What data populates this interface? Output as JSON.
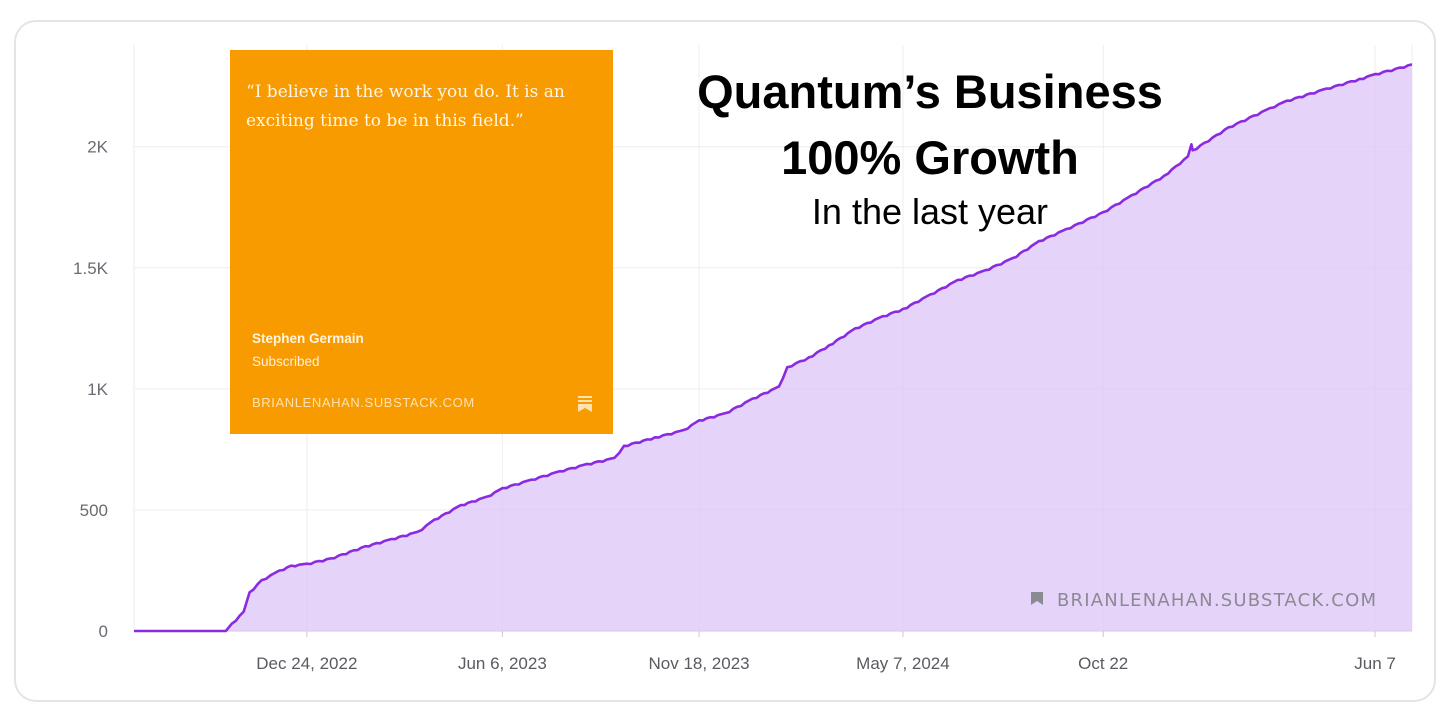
{
  "chart_data": {
    "type": "area",
    "title": "",
    "xlabel": "",
    "ylabel": "",
    "ylim": [
      0,
      2420
    ],
    "y_ticks": [
      {
        "value": 0,
        "label": "0"
      },
      {
        "value": 500,
        "label": "500"
      },
      {
        "value": 1000,
        "label": "1K"
      },
      {
        "value": 1500,
        "label": "1.5K"
      },
      {
        "value": 2000,
        "label": "2K"
      }
    ],
    "x_ticks": [
      "Dec 24, 2022",
      "Jun 6, 2023",
      "Nov 18, 2023",
      "May 7, 2024",
      "Oct 22",
      "Jun 7"
    ],
    "grid": true,
    "legend": "none",
    "series": [
      {
        "color": "#8a2be2",
        "fill": "#dcc4f7",
        "points": [
          [
            "2022-08-01",
            0
          ],
          [
            "2022-10-17",
            0
          ],
          [
            "2022-10-22",
            30
          ],
          [
            "2022-11-01",
            80
          ],
          [
            "2022-11-06",
            160
          ],
          [
            "2022-11-16",
            210
          ],
          [
            "2022-12-01",
            250
          ],
          [
            "2022-12-11",
            270
          ],
          [
            "2022-12-24",
            278
          ],
          [
            "2023-01-13",
            300
          ],
          [
            "2023-02-11",
            350
          ],
          [
            "2023-03-05",
            380
          ],
          [
            "2023-03-27",
            410
          ],
          [
            "2023-04-10",
            460
          ],
          [
            "2023-05-02",
            520
          ],
          [
            "2023-05-24",
            555
          ],
          [
            "2023-06-06",
            590
          ],
          [
            "2023-06-30",
            625
          ],
          [
            "2023-07-24",
            660
          ],
          [
            "2023-08-16",
            690
          ],
          [
            "2023-09-08",
            715
          ],
          [
            "2023-09-16",
            765
          ],
          [
            "2023-10-12",
            800
          ],
          [
            "2023-11-05",
            830
          ],
          [
            "2023-11-18",
            870
          ],
          [
            "2023-12-10",
            900
          ],
          [
            "2024-01-02",
            960
          ],
          [
            "2024-01-24",
            1010
          ],
          [
            "2024-01-31",
            1090
          ],
          [
            "2024-02-18",
            1130
          ],
          [
            "2024-03-06",
            1180
          ],
          [
            "2024-03-28",
            1250
          ],
          [
            "2024-04-20",
            1300
          ],
          [
            "2024-05-07",
            1330
          ],
          [
            "2024-05-30",
            1390
          ],
          [
            "2024-06-22",
            1450
          ],
          [
            "2024-07-15",
            1490
          ],
          [
            "2024-08-07",
            1540
          ],
          [
            "2024-08-29",
            1610
          ],
          [
            "2024-09-21",
            1660
          ],
          [
            "2024-10-22",
            1730
          ],
          [
            "2024-11-15",
            1800
          ],
          [
            "2024-12-12",
            1880
          ],
          [
            "2025-01-01",
            1960
          ],
          [
            "2025-01-04",
            2010
          ],
          [
            "2025-01-05",
            1985
          ],
          [
            "2025-02-04",
            2080
          ],
          [
            "2025-03-11",
            2160
          ],
          [
            "2025-03-25",
            2190
          ],
          [
            "2025-04-27",
            2240
          ],
          [
            "2025-05-25",
            2280
          ],
          [
            "2025-06-07",
            2300
          ],
          [
            "2025-07-08",
            2340
          ]
        ]
      }
    ],
    "watermark": "BRIANLENAHAN.SUBSTACK.COM"
  },
  "quote_card": {
    "quote": "“I believe in the work you do. It is an exciting time to be in this field.”",
    "author": "Stephen Germain",
    "status": "Subscribed",
    "site": "BRIANLENAHAN.SUBSTACK.COM",
    "background": "#f89b00",
    "icon": "bookmark-icon"
  },
  "headline": {
    "line1": "Quantum’s Business",
    "line2": "100% Growth",
    "line3": "In the last year"
  }
}
